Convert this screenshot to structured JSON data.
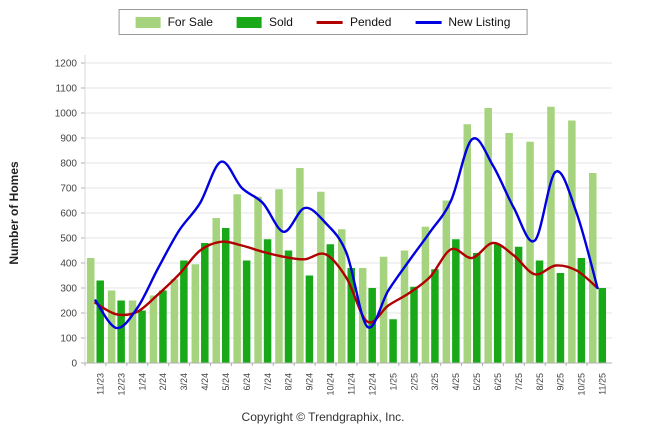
{
  "y_axis": {
    "title": "Number of Homes",
    "min": 0,
    "max": 1200,
    "step": 100
  },
  "footer": {
    "copyright": "Copyright © Trendgraphix, Inc."
  },
  "colors": {
    "for_sale": "#A6D37E",
    "sold": "#18A818",
    "pended": "#B00000",
    "new_listing": "#0000E0",
    "grid": "#e4e4e4",
    "axis": "#b0b0b0",
    "tick_label": "#444444"
  },
  "chart_data": {
    "type": "combo",
    "grid": true,
    "legend_position": "top",
    "ylim": [
      0,
      1200
    ],
    "ylabel": "Number of Homes",
    "categories": [
      "11/23",
      "12/23",
      "1/24",
      "2/24",
      "3/24",
      "4/24",
      "5/24",
      "6/24",
      "7/24",
      "8/24",
      "9/24",
      "10/24",
      "11/24",
      "12/24",
      "1/25",
      "2/25",
      "3/25",
      "4/25",
      "5/25",
      "6/25",
      "7/25",
      "8/25",
      "9/25",
      "10/25",
      "11/25"
    ],
    "series": [
      {
        "name": "For Sale",
        "type": "bar",
        "color": "#A6D37E",
        "values": [
          420,
          290,
          250,
          270,
          335,
          395,
          580,
          675,
          665,
          695,
          780,
          685,
          535,
          380,
          425,
          450,
          545,
          650,
          955,
          1020,
          920,
          885,
          1025,
          970,
          760
        ]
      },
      {
        "name": "Sold",
        "type": "bar",
        "color": "#18A818",
        "values": [
          330,
          250,
          210,
          290,
          410,
          480,
          540,
          410,
          495,
          450,
          350,
          475,
          380,
          300,
          175,
          305,
          375,
          495,
          440,
          475,
          465,
          410,
          360,
          420,
          300
        ]
      },
      {
        "name": "Pended",
        "type": "line",
        "color": "#B00000",
        "values": [
          240,
          195,
          205,
          275,
          355,
          450,
          485,
          470,
          445,
          425,
          415,
          435,
          340,
          165,
          230,
          280,
          345,
          455,
          420,
          480,
          430,
          355,
          390,
          370,
          300
        ]
      },
      {
        "name": "New Listing",
        "type": "line",
        "color": "#0000E0",
        "values": [
          250,
          140,
          220,
          380,
          530,
          640,
          805,
          700,
          640,
          525,
          620,
          560,
          440,
          145,
          290,
          410,
          525,
          650,
          895,
          790,
          620,
          490,
          765,
          600,
          300
        ]
      }
    ]
  }
}
